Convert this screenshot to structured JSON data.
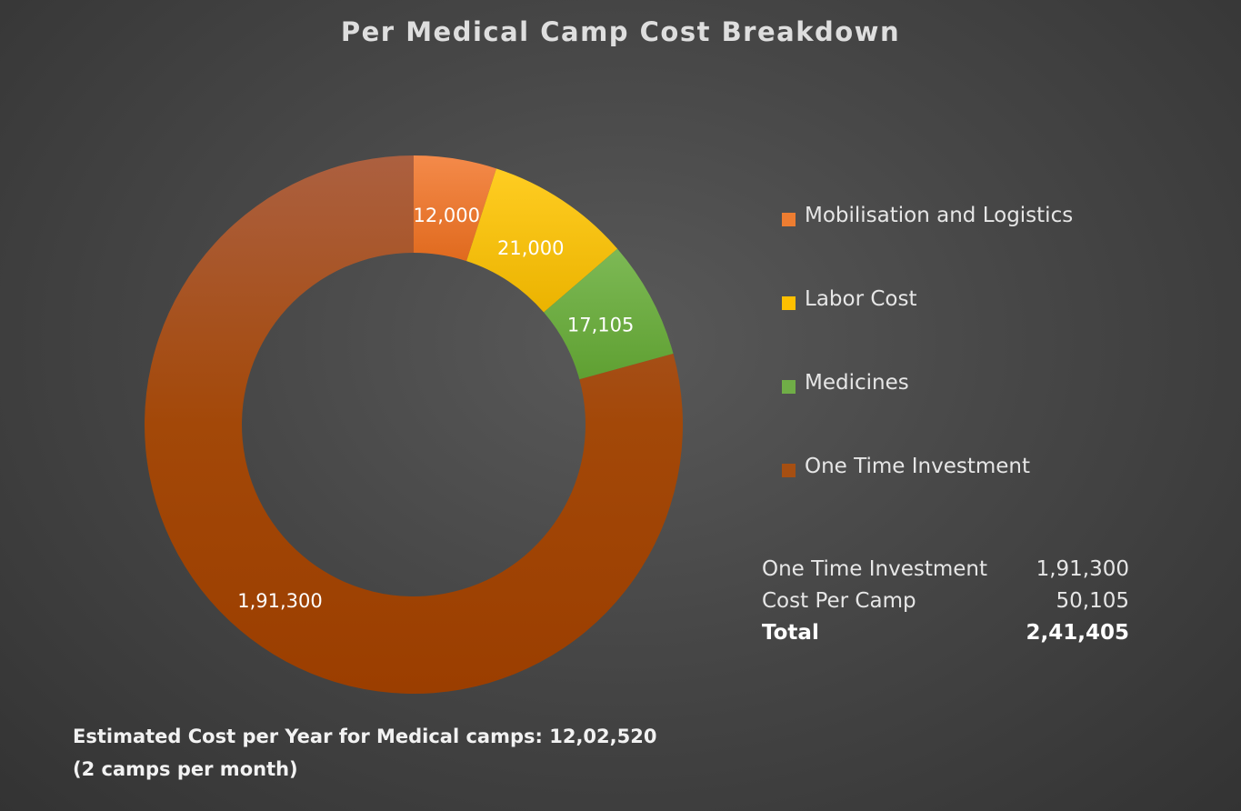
{
  "chart_data": {
    "type": "pie",
    "variant": "donut",
    "title": "Per Medical Camp Cost Breakdown",
    "categories": [
      "Mobilisation and Logistics",
      "Labor Cost",
      "Medicines",
      "One Time Investment"
    ],
    "values": [
      12000,
      21000,
      17105,
      191300
    ],
    "data_labels": [
      "12,000",
      "21,000",
      "17,105",
      "1,91,300"
    ],
    "colors": [
      "#ED7D31",
      "#FFC000",
      "#70AD47",
      "#A64F12"
    ],
    "legend_position": "right"
  },
  "summary_table": {
    "rows": [
      {
        "label": "One Time Investment",
        "value": "1,91,300"
      },
      {
        "label": "Cost Per Camp",
        "value": "50,105"
      },
      {
        "label": "Total",
        "value": "2,41,405"
      }
    ]
  },
  "footnote": {
    "line1": "Estimated Cost per Year for Medical camps: 12,02,520",
    "line2": "(2 camps per month)"
  }
}
